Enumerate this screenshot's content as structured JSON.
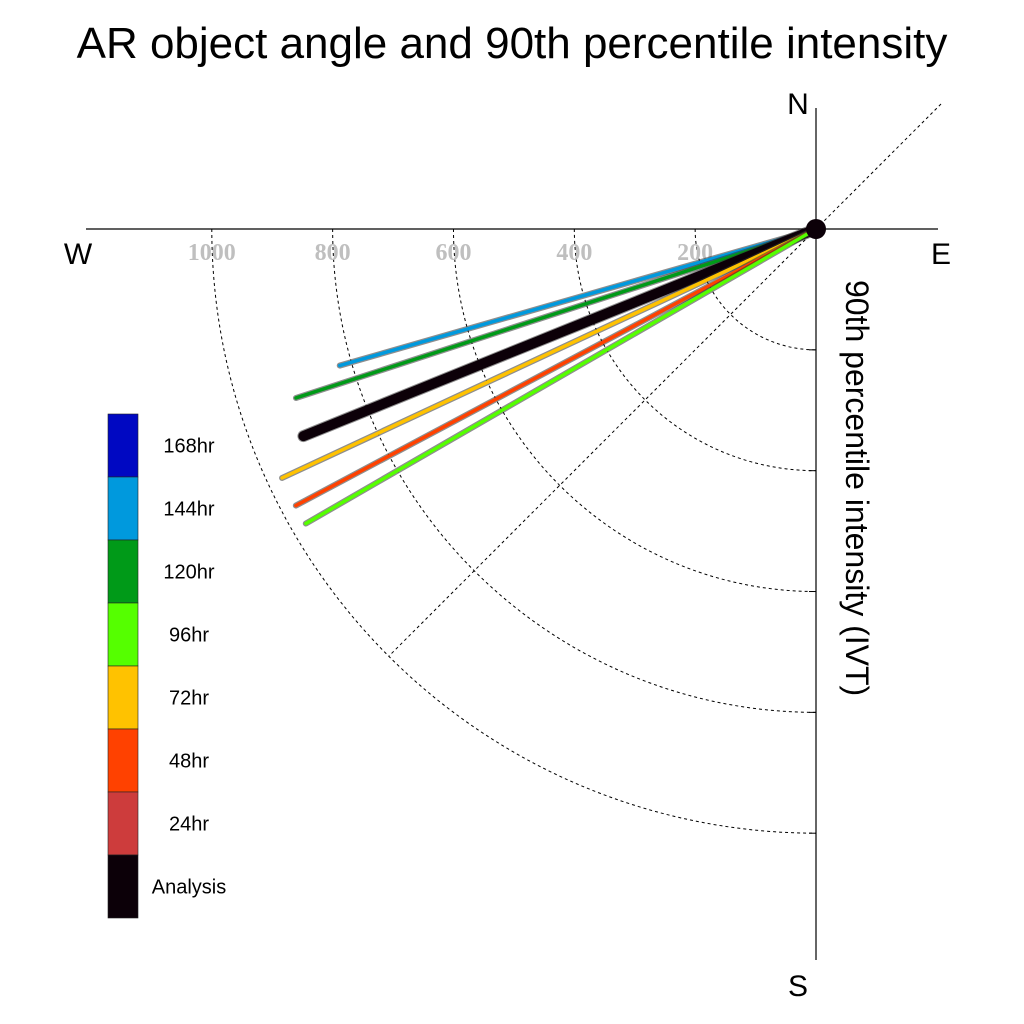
{
  "chart_data": {
    "type": "polar-line",
    "title": "AR object angle and 90th percentile intensity",
    "radial_label": "90th percentile intensity (IVT)",
    "compass": {
      "north": "N",
      "south": "S",
      "east": "E",
      "west": "W"
    },
    "radial_ticks": [
      200,
      400,
      600,
      800,
      1000
    ],
    "radial_tick_labels": [
      "200",
      "400",
      "600",
      "800",
      "1000"
    ],
    "radial_range": [
      0,
      1200
    ],
    "grid": true,
    "series": [
      {
        "name": "144hr",
        "color": "#0099dd",
        "angle_deg": 16,
        "value": 820
      },
      {
        "name": "120hr",
        "color": "#009a18",
        "angle_deg": 18,
        "value": 905
      },
      {
        "name": "Analysis",
        "color": "#0c0008",
        "angle_deg": 22,
        "value": 915
      },
      {
        "name": "72hr",
        "color": "#ffc200",
        "angle_deg": 25,
        "value": 975
      },
      {
        "name": "48hr",
        "color": "#ff4100",
        "angle_deg": 28,
        "value": 975
      },
      {
        "name": "96hr",
        "color": "#55ff00",
        "angle_deg": 30,
        "value": 975
      }
    ],
    "legend": {
      "position": "left",
      "entries": [
        {
          "label": "168hr",
          "color": "#0008c2"
        },
        {
          "label": "144hr",
          "color": "#0099dd"
        },
        {
          "label": "120hr",
          "color": "#009a18"
        },
        {
          "label": "96hr",
          "color": "#55ff00"
        },
        {
          "label": "72hr",
          "color": "#ffc200"
        },
        {
          "label": "48hr",
          "color": "#ff4100"
        },
        {
          "label": "24hr",
          "color": "#cd3c3c"
        },
        {
          "label": "Analysis",
          "color": "#0c0008"
        }
      ]
    }
  }
}
